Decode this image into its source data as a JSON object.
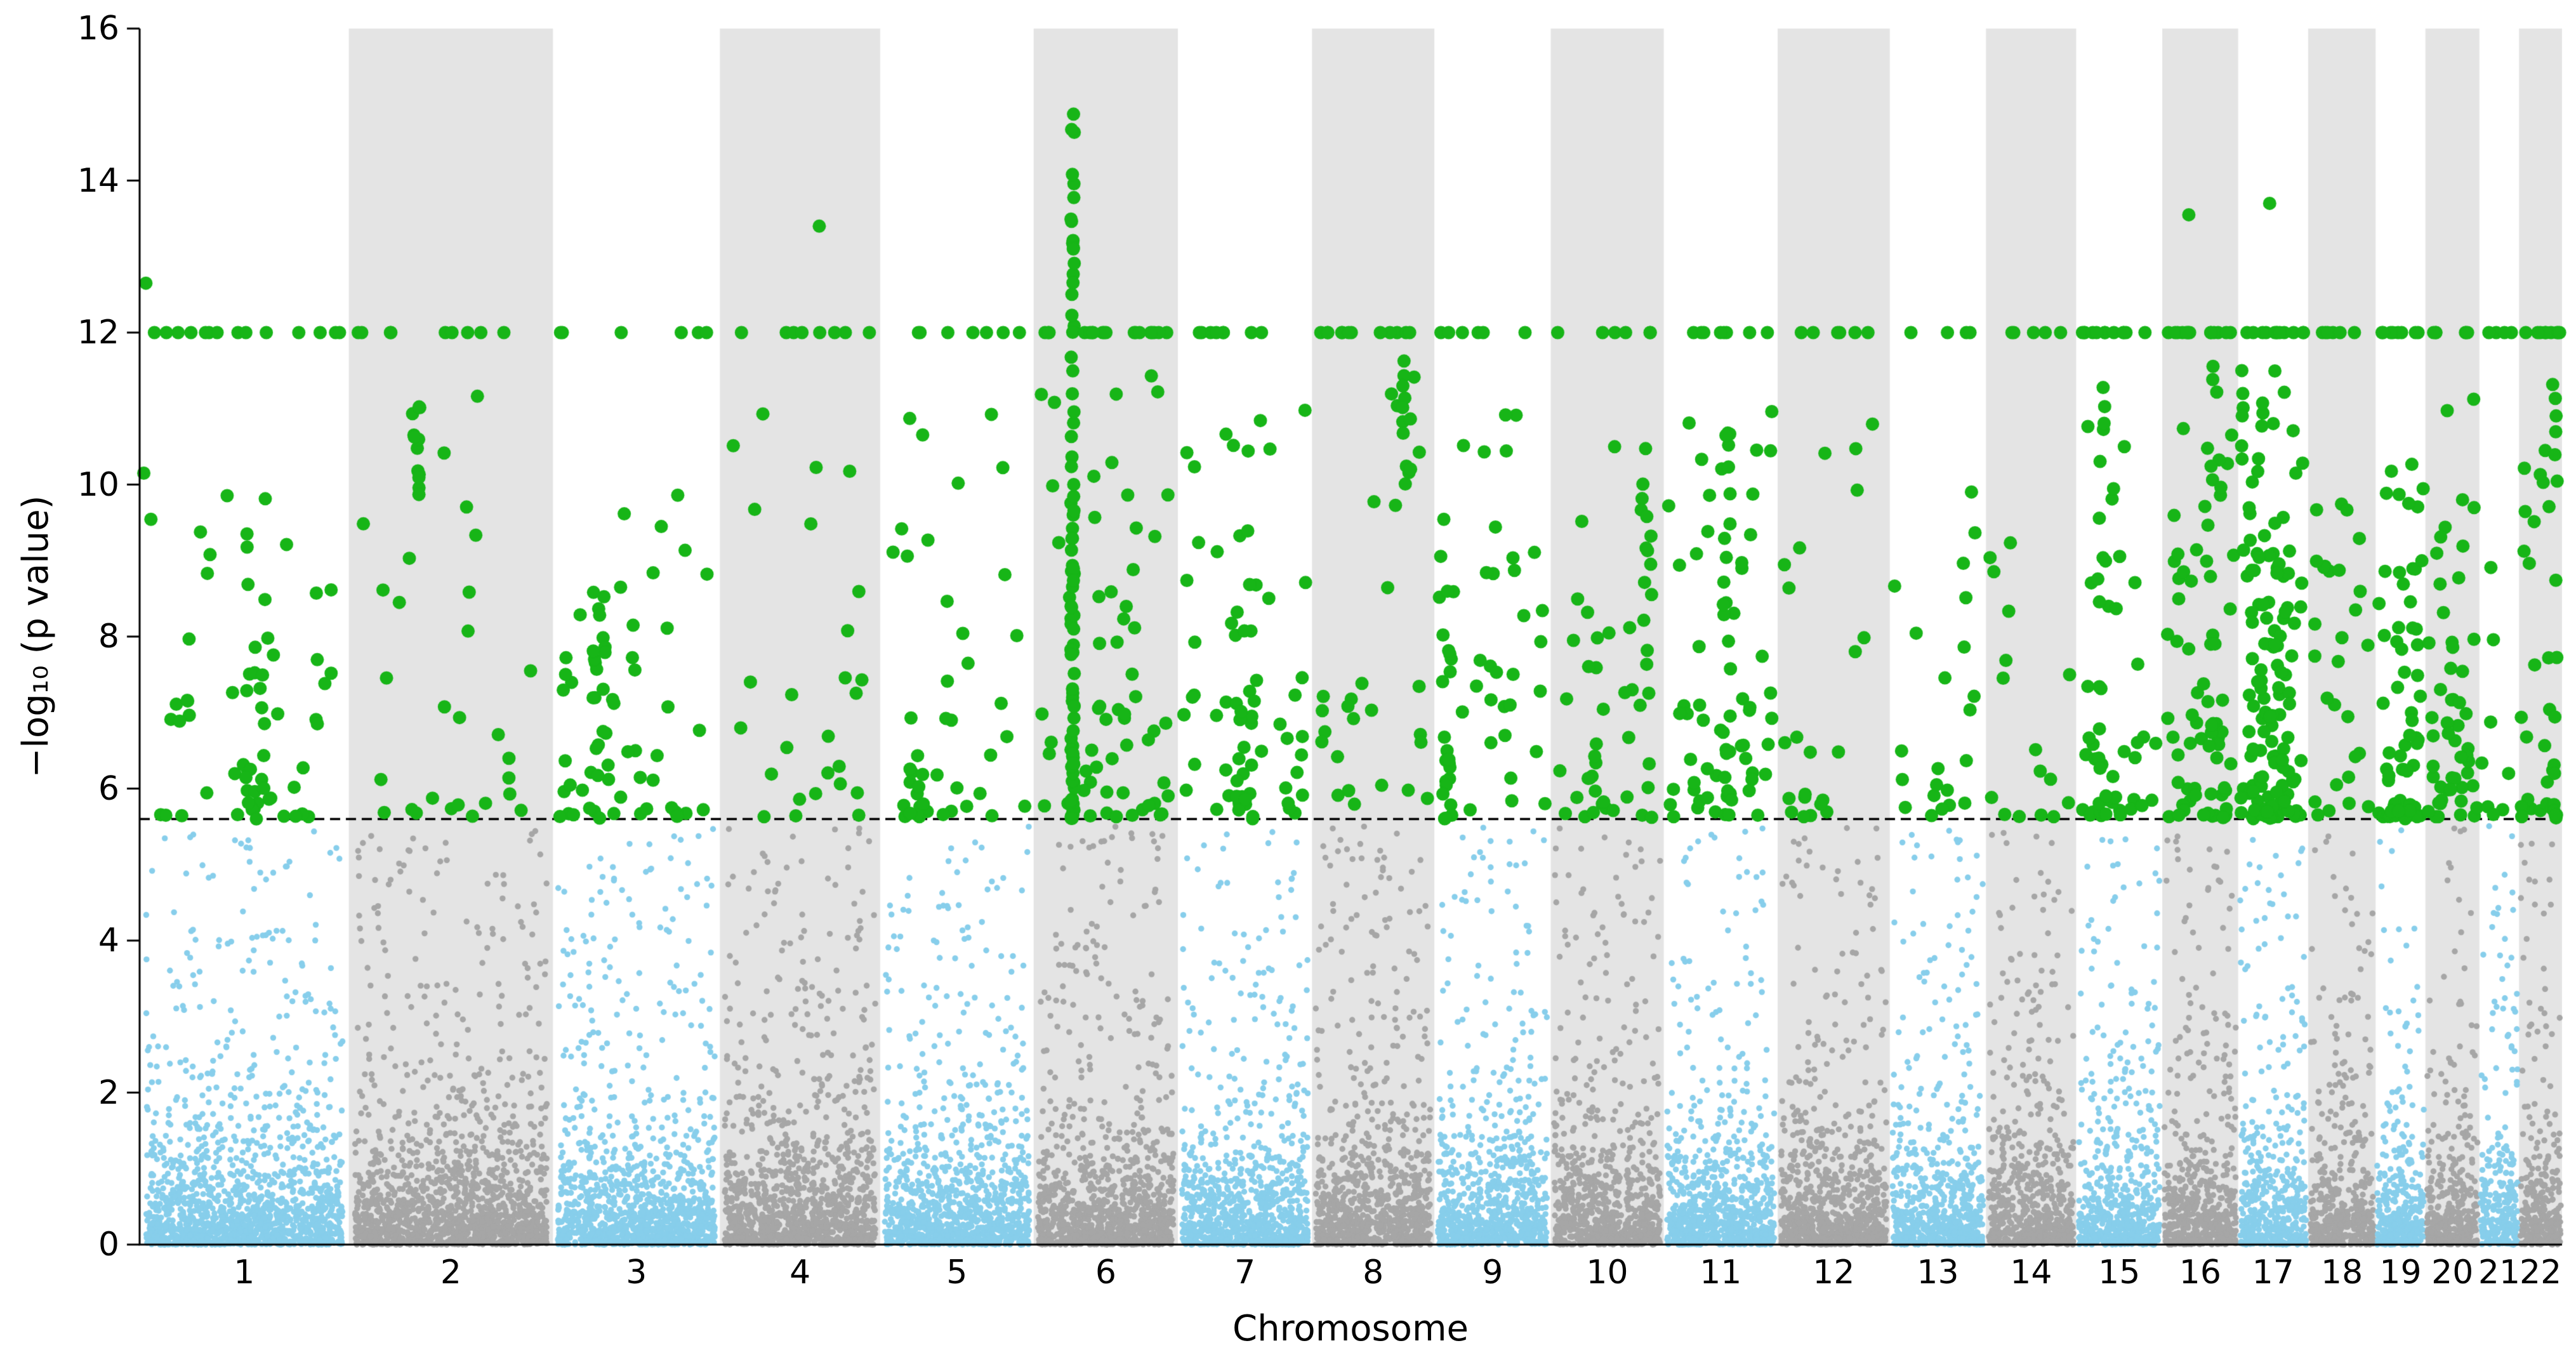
{
  "chart_data": {
    "type": "scatter",
    "variant": "manhattan",
    "title": "",
    "xlabel": "Chromosome",
    "ylabel": "-log10 (p value)",
    "ylabel_display": "−log₁₀ (p value)",
    "ylim": [
      0,
      16
    ],
    "yticks": [
      0,
      2,
      4,
      6,
      8,
      10,
      12,
      14,
      16
    ],
    "grid": false,
    "legend": false,
    "threshold": 5.6,
    "cap_line": 12,
    "colors": {
      "band": "#e4e4e4",
      "point_below_odd": "#87CEEB",
      "point_below_even": "#a6a6a6",
      "point_significant": "#17b517",
      "threshold_line": "#000000",
      "axis": "#000000"
    },
    "chromosomes": [
      {
        "label": "1",
        "rel_width": 2.48,
        "n_background": 1500,
        "n_sig": 50,
        "sig_max": 10.2,
        "n_cap": 14,
        "clusters": [
          {
            "x_frac": 0.55,
            "n": 15,
            "y_min": 5.6,
            "y_max": 8.0,
            "spread": 0.05
          }
        ],
        "extra_points": [
          {
            "x_frac": 0.03,
            "y": 12.65
          },
          {
            "x_frac": 0.02,
            "y": 10.15
          }
        ]
      },
      {
        "label": "2",
        "rel_width": 2.42,
        "n_background": 1450,
        "n_sig": 28,
        "sig_max": 11.2,
        "n_cap": 9,
        "clusters": [
          {
            "x_frac": 0.33,
            "n": 12,
            "y_min": 9.8,
            "y_max": 11.2,
            "spread": 0.02
          }
        ],
        "extra_points": []
      },
      {
        "label": "3",
        "rel_width": 1.98,
        "n_background": 1190,
        "n_sig": 48,
        "sig_max": 10.3,
        "n_cap": 6,
        "clusters": [
          {
            "x_frac": 0.28,
            "n": 18,
            "y_min": 5.6,
            "y_max": 9.2,
            "spread": 0.08
          }
        ],
        "extra_points": []
      },
      {
        "label": "4",
        "rel_width": 1.9,
        "n_background": 1140,
        "n_sig": 26,
        "sig_max": 11.0,
        "n_cap": 8,
        "clusters": [],
        "extra_points": [
          {
            "x_frac": 0.62,
            "y": 13.4
          }
        ]
      },
      {
        "label": "5",
        "rel_width": 1.82,
        "n_background": 1090,
        "n_sig": 32,
        "sig_max": 11.0,
        "n_cap": 7,
        "clusters": [
          {
            "x_frac": 0.25,
            "n": 12,
            "y_min": 5.6,
            "y_max": 7.2,
            "spread": 0.06
          }
        ],
        "extra_points": []
      },
      {
        "label": "6",
        "rel_width": 1.71,
        "n_background": 1030,
        "n_sig": 60,
        "sig_max": 11.8,
        "n_cap": 18,
        "clusters": [
          {
            "x_frac": 0.27,
            "n": 85,
            "y_min": 5.6,
            "y_max": 15.0,
            "spread": 0.012
          }
        ],
        "extra_points": []
      },
      {
        "label": "7",
        "rel_width": 1.59,
        "n_background": 950,
        "n_sig": 48,
        "sig_max": 11.2,
        "n_cap": 8,
        "clusters": [
          {
            "x_frac": 0.5,
            "n": 22,
            "y_min": 5.6,
            "y_max": 9.7,
            "spread": 0.09
          }
        ],
        "extra_points": []
      },
      {
        "label": "8",
        "rel_width": 1.45,
        "n_background": 870,
        "n_sig": 26,
        "sig_max": 11.5,
        "n_cap": 12,
        "clusters": [
          {
            "x_frac": 0.78,
            "n": 12,
            "y_min": 9.8,
            "y_max": 11.9,
            "spread": 0.04
          }
        ],
        "extra_points": []
      },
      {
        "label": "9",
        "rel_width": 1.38,
        "n_background": 830,
        "n_sig": 36,
        "sig_max": 10.9,
        "n_cap": 6,
        "clusters": [
          {
            "x_frac": 0.12,
            "n": 20,
            "y_min": 5.6,
            "y_max": 8.8,
            "spread": 0.05
          }
        ],
        "extra_points": []
      },
      {
        "label": "10",
        "rel_width": 1.34,
        "n_background": 800,
        "n_sig": 38,
        "sig_max": 10.5,
        "n_cap": 6,
        "clusters": [
          {
            "x_frac": 0.85,
            "n": 14,
            "y_min": 5.6,
            "y_max": 10.6,
            "spread": 0.05
          }
        ],
        "extra_points": []
      },
      {
        "label": "11",
        "rel_width": 1.35,
        "n_background": 810,
        "n_sig": 55,
        "sig_max": 11.0,
        "n_cap": 8,
        "clusters": [
          {
            "x_frac": 0.55,
            "n": 22,
            "y_min": 5.6,
            "y_max": 10.9,
            "spread": 0.05
          }
        ],
        "extra_points": []
      },
      {
        "label": "12",
        "rel_width": 1.33,
        "n_background": 800,
        "n_sig": 22,
        "sig_max": 10.8,
        "n_cap": 6,
        "clusters": [],
        "extra_points": []
      },
      {
        "label": "13",
        "rel_width": 1.14,
        "n_background": 680,
        "n_sig": 22,
        "sig_max": 10.2,
        "n_cap": 4,
        "clusters": [],
        "extra_points": []
      },
      {
        "label": "14",
        "rel_width": 1.07,
        "n_background": 640,
        "n_sig": 16,
        "sig_max": 10.2,
        "n_cap": 5,
        "clusters": [],
        "extra_points": []
      },
      {
        "label": "15",
        "rel_width": 1.02,
        "n_background": 610,
        "n_sig": 38,
        "sig_max": 11.3,
        "n_cap": 12,
        "clusters": [
          {
            "x_frac": 0.3,
            "n": 16,
            "y_min": 5.6,
            "y_max": 11.2,
            "spread": 0.05
          }
        ],
        "extra_points": []
      },
      {
        "label": "16",
        "rel_width": 0.9,
        "n_background": 540,
        "n_sig": 55,
        "sig_max": 11.6,
        "n_cap": 14,
        "clusters": [
          {
            "x_frac": 0.7,
            "n": 20,
            "y_min": 5.6,
            "y_max": 11.5,
            "spread": 0.12
          }
        ],
        "extra_points": [
          {
            "x_frac": 0.35,
            "y": 13.55
          }
        ]
      },
      {
        "label": "17",
        "rel_width": 0.83,
        "n_background": 500,
        "n_sig": 90,
        "sig_max": 11.5,
        "n_cap": 12,
        "clusters": [
          {
            "x_frac": 0.45,
            "n": 45,
            "y_min": 5.6,
            "y_max": 9.5,
            "spread": 0.3
          }
        ],
        "extra_points": [
          {
            "x_frac": 0.45,
            "y": 13.7
          }
        ]
      },
      {
        "label": "18",
        "rel_width": 0.8,
        "n_background": 480,
        "n_sig": 28,
        "sig_max": 10.6,
        "n_cap": 6,
        "clusters": [],
        "extra_points": []
      },
      {
        "label": "19",
        "rel_width": 0.59,
        "n_background": 355,
        "n_sig": 45,
        "sig_max": 10.4,
        "n_cap": 8,
        "clusters": [
          {
            "x_frac": 0.5,
            "n": 18,
            "y_min": 5.6,
            "y_max": 10.0,
            "spread": 0.25
          }
        ],
        "extra_points": []
      },
      {
        "label": "20",
        "rel_width": 0.64,
        "n_background": 385,
        "n_sig": 38,
        "sig_max": 11.2,
        "n_cap": 6,
        "clusters": [
          {
            "x_frac": 0.55,
            "n": 14,
            "y_min": 5.6,
            "y_max": 8.5,
            "spread": 0.15
          }
        ],
        "extra_points": []
      },
      {
        "label": "21",
        "rel_width": 0.47,
        "n_background": 280,
        "n_sig": 8,
        "sig_max": 9.0,
        "n_cap": 4,
        "clusters": [],
        "extra_points": []
      },
      {
        "label": "22",
        "rel_width": 0.51,
        "n_background": 305,
        "n_sig": 28,
        "sig_max": 11.5,
        "n_cap": 9,
        "clusters": [
          {
            "x_frac": 0.85,
            "n": 14,
            "y_min": 5.6,
            "y_max": 12.0,
            "spread": 0.04
          }
        ],
        "extra_points": []
      }
    ]
  }
}
